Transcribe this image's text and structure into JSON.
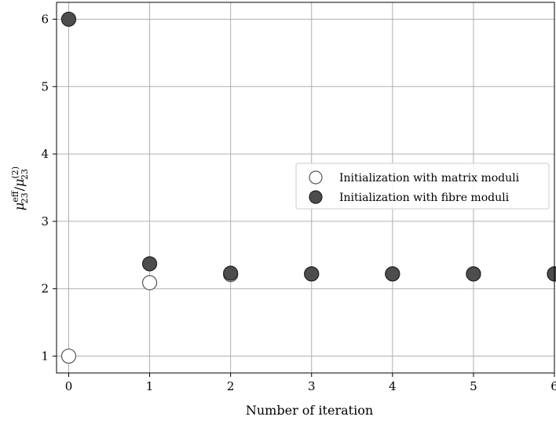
{
  "chart_data": {
    "type": "scatter",
    "xlabel": "Number of iteration",
    "ylabel": "μ^eff_23 / μ^(2)_23",
    "ylabel_parts": {
      "base1": "μ",
      "sup1": "eff",
      "sub1": "23",
      "slash": "/",
      "base2": "μ",
      "sup2": "(2)",
      "sub2": "23"
    },
    "xlim": [
      -0.15,
      6
    ],
    "ylim": [
      0.75,
      6.25
    ],
    "x_ticks": [
      0,
      1,
      2,
      3,
      4,
      5,
      6
    ],
    "y_ticks": [
      1,
      2,
      3,
      4,
      5,
      6
    ],
    "grid": true,
    "legend_position": "center-right",
    "series": [
      {
        "name": "Initialization with matrix moduli",
        "marker": "open-circle",
        "color": "#ffffff",
        "edge_color": "#555555",
        "x": [
          0,
          1,
          2,
          3,
          4,
          5,
          6
        ],
        "y": [
          1.0,
          2.09,
          2.21,
          2.22,
          2.22,
          2.22,
          2.22
        ]
      },
      {
        "name": "Initialization with fibre moduli",
        "marker": "filled-circle",
        "color": "#4d4d4d",
        "edge_color": "#222222",
        "x": [
          0,
          1,
          2,
          3,
          4,
          5,
          6
        ],
        "y": [
          6.0,
          2.37,
          2.23,
          2.22,
          2.22,
          2.22,
          2.22
        ]
      }
    ]
  }
}
